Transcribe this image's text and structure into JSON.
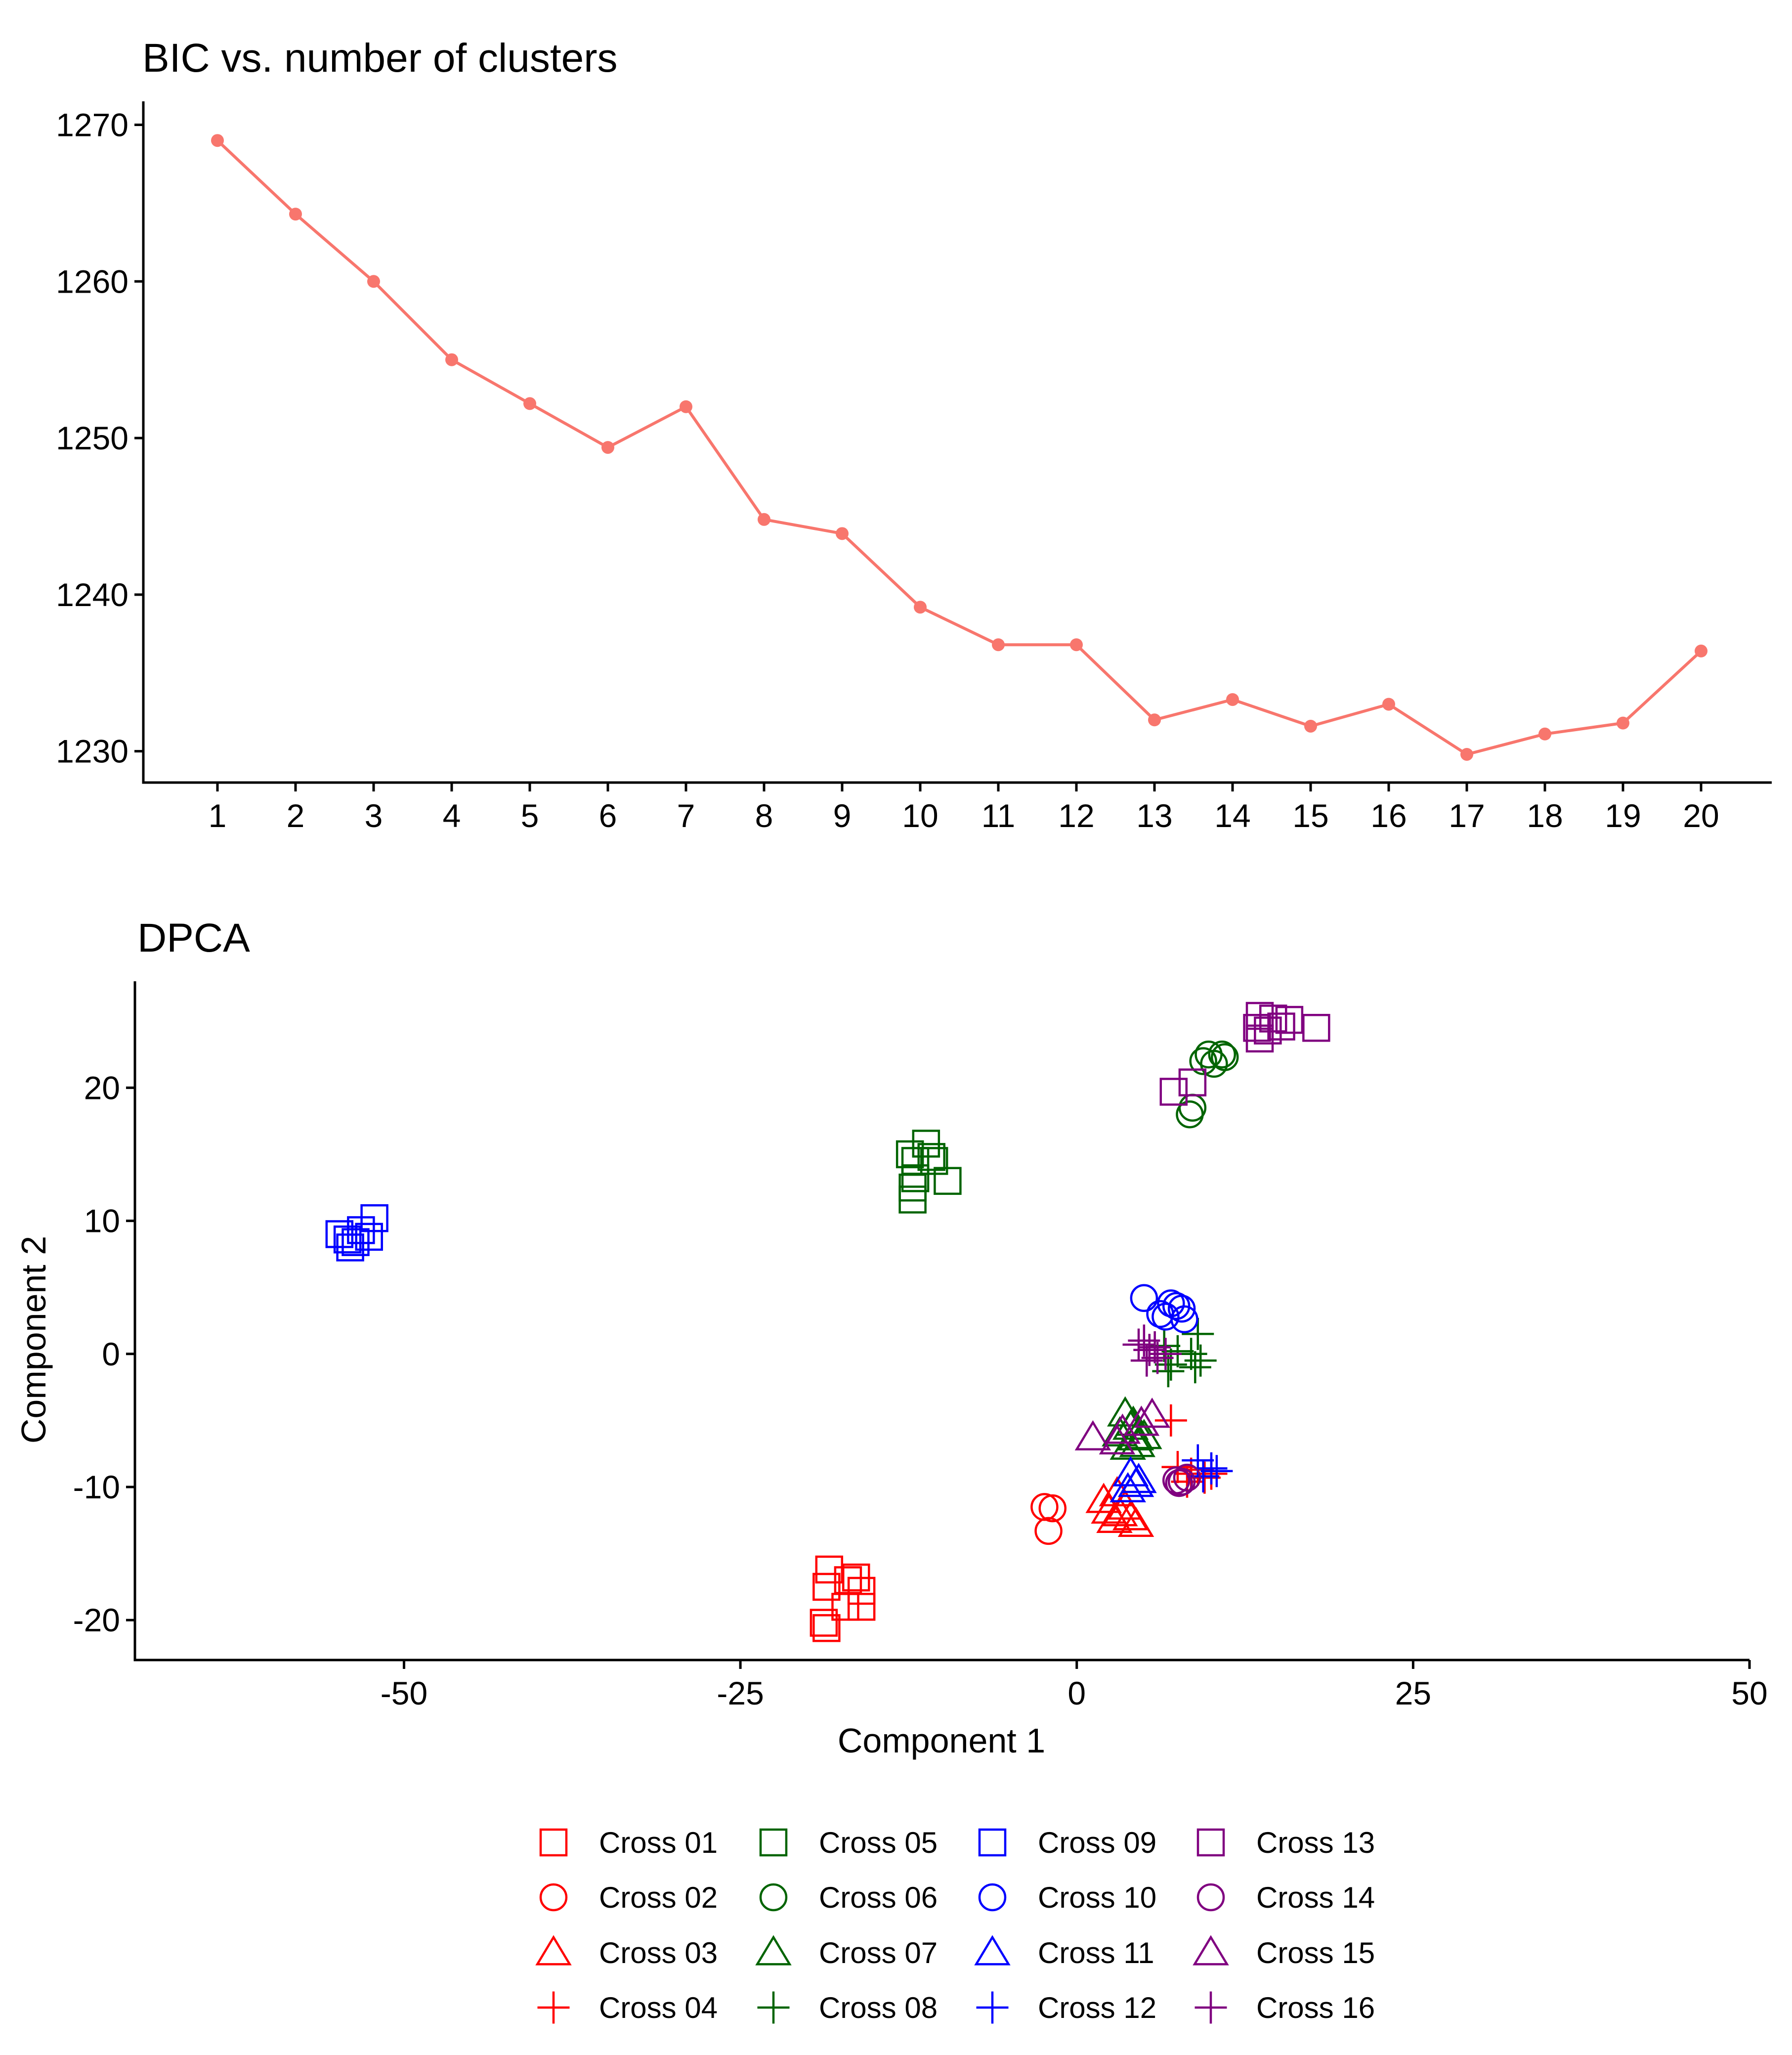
{
  "chart_data": [
    {
      "type": "line",
      "title": "BIC vs. number of clusters",
      "xlabel": "",
      "ylabel": "",
      "x": [
        1,
        2,
        3,
        4,
        5,
        6,
        7,
        8,
        9,
        10,
        11,
        12,
        13,
        14,
        15,
        16,
        17,
        18,
        19,
        20
      ],
      "series": [
        {
          "values": [
            1269,
            1264.3,
            1260,
            1255,
            1252.2,
            1249.4,
            1252,
            1244.8,
            1243.9,
            1239.2,
            1236.8,
            1236.8,
            1232,
            1233.3,
            1231.6,
            1233,
            1229.8,
            1231.1,
            1231.8,
            1236.4
          ]
        }
      ],
      "xticks": [
        "1",
        "2",
        "3",
        "4",
        "5",
        "6",
        "7",
        "8",
        "9",
        "10",
        "11",
        "12",
        "13",
        "14",
        "15",
        "16",
        "17",
        "18",
        "19",
        "20"
      ],
      "yticks": [
        "1230",
        "1240",
        "1250",
        "1260",
        "1270"
      ],
      "ylim": [
        1228,
        1271.5
      ],
      "grid": false,
      "colors": {
        "line": "#F8766D"
      }
    },
    {
      "type": "scatter",
      "title": "DPCA",
      "xlabel": "Component 1",
      "ylabel": "Component 2",
      "xlim": [
        -70,
        50
      ],
      "ylim": [
        -23,
        28
      ],
      "xticks": [
        "-50",
        "-25",
        "0",
        "25",
        "50"
      ],
      "xtick_values": [
        -50,
        -25,
        0,
        25,
        50
      ],
      "yticks": [
        "-20",
        "-10",
        "0",
        "10",
        "20"
      ],
      "ytick_values": [
        -20,
        -10,
        0,
        10,
        20
      ],
      "grid": false,
      "legend_position": "bottom",
      "series": [
        {
          "name": "Cross 01",
          "color": "#FF0000",
          "shape": "square",
          "points": [
            [
              -18.4,
              -16.2
            ],
            [
              -18.6,
              -17.5
            ],
            [
              -17,
              -17
            ],
            [
              -16.4,
              -16.8
            ],
            [
              -16,
              -17.8
            ],
            [
              -16,
              -19
            ],
            [
              -17.2,
              -19
            ],
            [
              -18.8,
              -20.2
            ],
            [
              -18.6,
              -20.6
            ]
          ]
        },
        {
          "name": "Cross 02",
          "color": "#FF0000",
          "shape": "circle",
          "points": [
            [
              -2.4,
              -11.5
            ],
            [
              -1.8,
              -11.6
            ],
            [
              -2.1,
              -13.3
            ]
          ]
        },
        {
          "name": "Cross 03",
          "color": "#FF0000",
          "shape": "triangle",
          "points": [
            [
              2,
              -11
            ],
            [
              3,
              -10.5
            ],
            [
              2.4,
              -11.8
            ],
            [
              3.2,
              -12
            ],
            [
              4,
              -12.3
            ],
            [
              4.4,
              -12.8
            ],
            [
              2.8,
              -12.5
            ],
            [
              3.6,
              -11.5
            ]
          ]
        },
        {
          "name": "Cross 04",
          "color": "#FF0000",
          "shape": "plus",
          "points": [
            [
              7,
              -5
            ],
            [
              7.5,
              -8.5
            ],
            [
              8.5,
              -9
            ],
            [
              9,
              -8.7
            ],
            [
              9.5,
              -9.3
            ],
            [
              8.2,
              -9.6
            ],
            [
              10,
              -9
            ]
          ]
        },
        {
          "name": "Cross 05",
          "color": "#006400",
          "shape": "square",
          "points": [
            [
              -12.4,
              15
            ],
            [
              -11.2,
              15.8
            ],
            [
              -12,
              14.5
            ],
            [
              -10.6,
              14.5
            ],
            [
              -10.8,
              14.8
            ],
            [
              -12,
              13.2
            ],
            [
              -12.2,
              12.5
            ],
            [
              -12.2,
              11.6
            ],
            [
              -9.6,
              13
            ]
          ]
        },
        {
          "name": "Cross 06",
          "color": "#006400",
          "shape": "circle",
          "points": [
            [
              9.8,
              22.5
            ],
            [
              10.2,
              21.8
            ],
            [
              10.8,
              22.5
            ],
            [
              9.4,
              22
            ],
            [
              8.6,
              18.5
            ],
            [
              8.4,
              18
            ],
            [
              11,
              22.3
            ]
          ]
        },
        {
          "name": "Cross 07",
          "color": "#006400",
          "shape": "triangle",
          "points": [
            [
              3.6,
              -4.5
            ],
            [
              4,
              -5.5
            ],
            [
              3.2,
              -6
            ],
            [
              4.4,
              -6.3
            ],
            [
              3.8,
              -7
            ],
            [
              4.5,
              -6.8
            ],
            [
              5,
              -6.2
            ],
            [
              4.2,
              -5.2
            ]
          ]
        },
        {
          "name": "Cross 08",
          "color": "#006400",
          "shape": "plus",
          "points": [
            [
              9,
              1.5
            ],
            [
              6.5,
              0.6
            ],
            [
              7.5,
              0.2
            ],
            [
              8.5,
              0
            ],
            [
              9.2,
              -0.5
            ],
            [
              7,
              -0.8
            ],
            [
              8.8,
              -1
            ],
            [
              6.8,
              -1.3
            ]
          ]
        },
        {
          "name": "Cross 09",
          "color": "#0000FF",
          "shape": "square",
          "points": [
            [
              -54.8,
              9
            ],
            [
              -54.2,
              8.6
            ],
            [
              -53.2,
              9.3
            ],
            [
              -52.2,
              10.2
            ],
            [
              -53.6,
              8.4
            ],
            [
              -54,
              8
            ],
            [
              -52.6,
              8.8
            ]
          ]
        },
        {
          "name": "Cross 10",
          "color": "#0000FF",
          "shape": "circle",
          "points": [
            [
              5,
              4.2
            ],
            [
              7,
              3.8
            ],
            [
              7.4,
              3.6
            ],
            [
              6.2,
              3
            ],
            [
              7.8,
              3.4
            ],
            [
              6.6,
              2.8
            ],
            [
              8,
              2.6
            ]
          ]
        },
        {
          "name": "Cross 11",
          "color": "#0000FF",
          "shape": "triangle",
          "points": [
            [
              4,
              -9
            ],
            [
              4.4,
              -9.8
            ],
            [
              3.8,
              -10.2
            ],
            [
              4.6,
              -9.5
            ]
          ]
        },
        {
          "name": "Cross 12",
          "color": "#0000FF",
          "shape": "plus",
          "points": [
            [
              9,
              -8
            ],
            [
              10,
              -8.6
            ],
            [
              10.4,
              -8.8
            ],
            [
              9.4,
              -9.2
            ]
          ]
        },
        {
          "name": "Cross 13",
          "color": "#800080",
          "shape": "square",
          "points": [
            [
              13.6,
              25.4
            ],
            [
              14.6,
              25.2
            ],
            [
              15.8,
              25.1
            ],
            [
              13.4,
              24.5
            ],
            [
              14.2,
              24.3
            ],
            [
              15.2,
              24.6
            ],
            [
              17.8,
              24.5
            ],
            [
              13.6,
              23.7
            ],
            [
              7.2,
              19.7
            ],
            [
              8.6,
              20.4
            ]
          ]
        },
        {
          "name": "Cross 14",
          "color": "#800080",
          "shape": "circle",
          "points": [
            [
              7.4,
              -9.5
            ],
            [
              7.8,
              -9.6
            ],
            [
              8.2,
              -9.3
            ],
            [
              7.6,
              -9.7
            ]
          ]
        },
        {
          "name": "Cross 15",
          "color": "#800080",
          "shape": "triangle",
          "points": [
            [
              1.2,
              -6.3
            ],
            [
              5.6,
              -4.6
            ],
            [
              3.4,
              -5.8
            ],
            [
              4.8,
              -5.2
            ],
            [
              3,
              -6.6
            ]
          ]
        },
        {
          "name": "Cross 16",
          "color": "#800080",
          "shape": "plus",
          "points": [
            [
              5,
              1
            ],
            [
              5.4,
              0.3
            ],
            [
              4.6,
              0.7
            ],
            [
              6,
              -0.3
            ],
            [
              5.8,
              0.5
            ],
            [
              6.6,
              0
            ],
            [
              5.2,
              -0.5
            ]
          ]
        }
      ]
    }
  ]
}
